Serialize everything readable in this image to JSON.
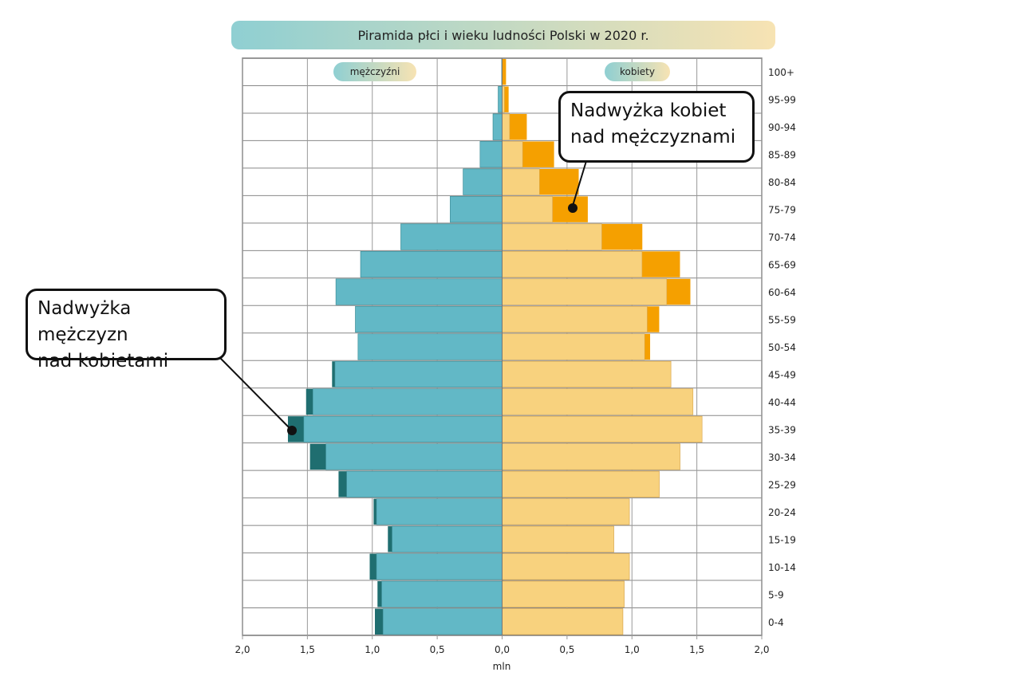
{
  "chart_data": {
    "type": "bar",
    "title": "Piramida płci i wieku ludności Polski w 2020 r.",
    "xlabel": "mln",
    "xlim": [
      -2.0,
      2.0
    ],
    "x_ticks": [
      "2,0",
      "1,5",
      "1,0",
      "0,5",
      "0,0",
      "0,5",
      "1,0",
      "1,5",
      "2,0"
    ],
    "grid": true,
    "categories": [
      "100+",
      "95-99",
      "90-94",
      "85-89",
      "80-84",
      "75-79",
      "70-74",
      "65-69",
      "60-64",
      "55-59",
      "50-54",
      "45-49",
      "40-44",
      "35-39",
      "30-34",
      "25-29",
      "20-24",
      "15-19",
      "10-14",
      "5-9",
      "0-4"
    ],
    "series": [
      {
        "name": "mężczyźni",
        "values": [
          0.003,
          0.03,
          0.07,
          0.17,
          0.3,
          0.4,
          0.78,
          1.09,
          1.28,
          1.13,
          1.11,
          1.31,
          1.51,
          1.65,
          1.48,
          1.26,
          0.99,
          0.88,
          1.02,
          0.96,
          0.98
        ]
      },
      {
        "name": "kobiety",
        "values": [
          0.03,
          0.05,
          0.19,
          0.4,
          0.59,
          0.66,
          1.08,
          1.37,
          1.45,
          1.21,
          1.14,
          1.3,
          1.47,
          1.54,
          1.37,
          1.21,
          0.98,
          0.86,
          0.98,
          0.94,
          0.93
        ]
      }
    ],
    "colors": {
      "male": "#62b8c6",
      "male_excess": "#1f6e70",
      "female": "#f8d27e",
      "female_excess": "#f5a000"
    },
    "annotations": {
      "female_excess": [
        "Nadwyżka kobiet",
        "nad mężczyznami"
      ],
      "male_excess": [
        "Nadwyżka mężczyzn",
        "nad kobietami"
      ]
    }
  }
}
